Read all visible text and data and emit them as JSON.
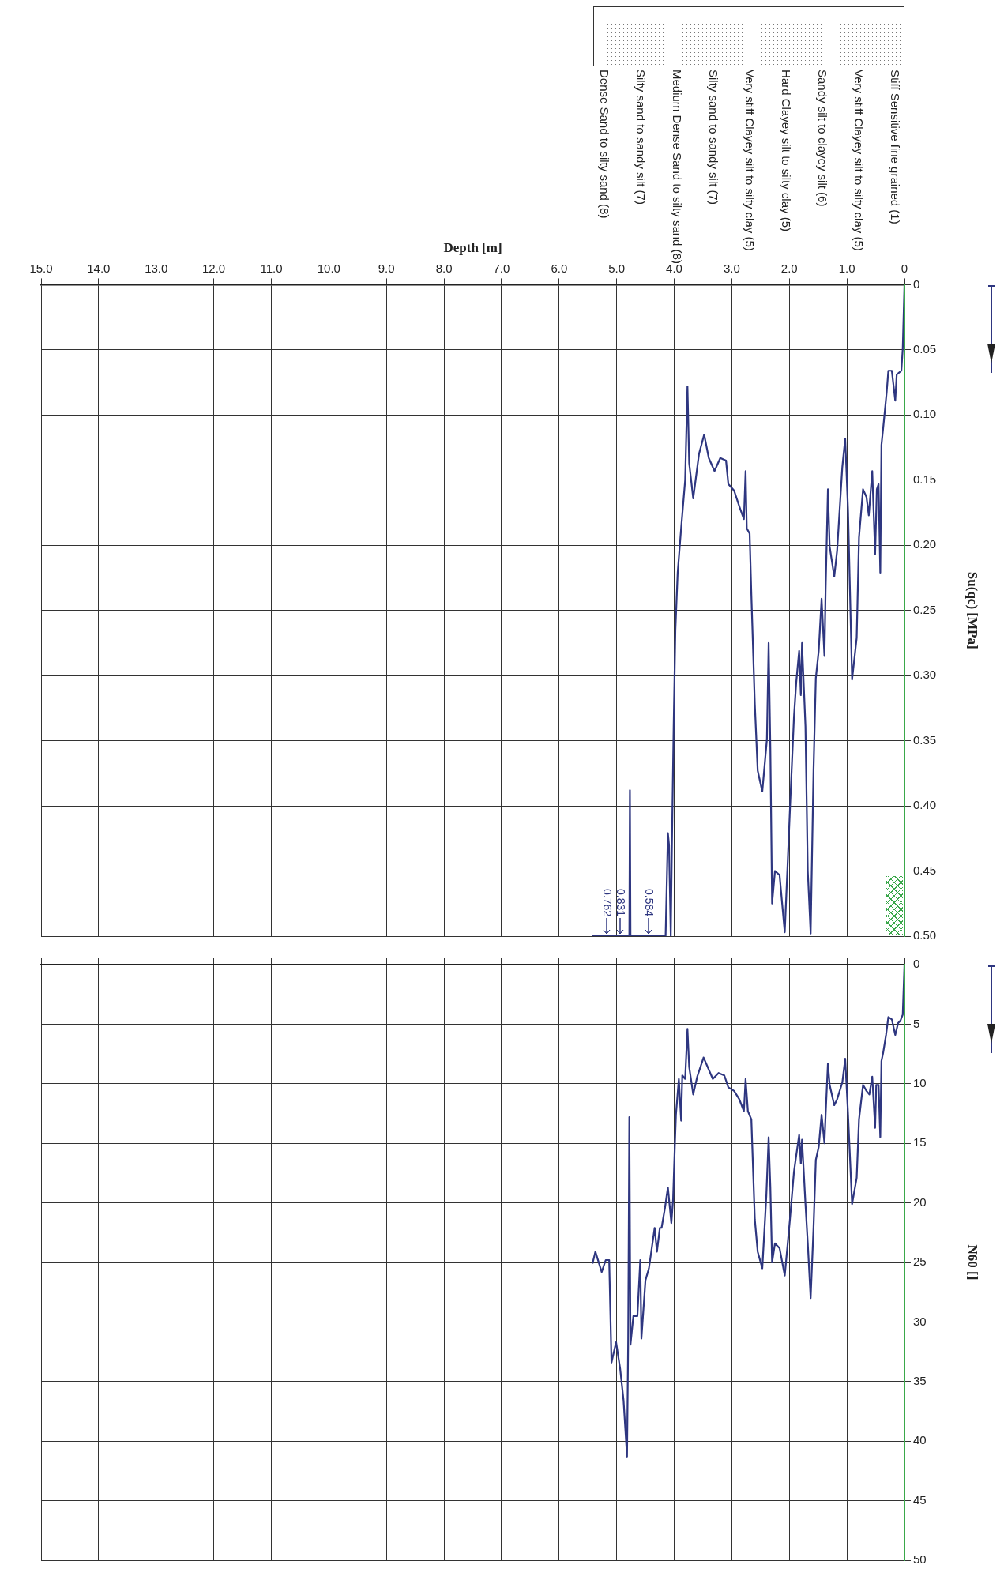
{
  "chart_data": [
    {
      "type": "line",
      "xlabel": "Depth [m]",
      "ylabel": "Su(qc) [MPa]",
      "xlim": [
        15,
        0
      ],
      "ylim": [
        0.5,
        0
      ],
      "xticks": [
        {
          "value": 15,
          "label": "15.0"
        },
        {
          "value": 14,
          "label": "14.0"
        },
        {
          "value": 13,
          "label": "13.0"
        },
        {
          "value": 12,
          "label": "12.0"
        },
        {
          "value": 11,
          "label": "11.0"
        },
        {
          "value": 10,
          "label": "10.0"
        },
        {
          "value": 9,
          "label": "9.0"
        },
        {
          "value": 8,
          "label": "8.0"
        },
        {
          "value": 7,
          "label": "7.0"
        },
        {
          "value": 6,
          "label": "6.0"
        },
        {
          "value": 5,
          "label": "5.0"
        },
        {
          "value": 4,
          "label": "4.0"
        },
        {
          "value": 3,
          "label": "3.0"
        },
        {
          "value": 2,
          "label": "2.0"
        },
        {
          "value": 1,
          "label": "1.0"
        },
        0
      ],
      "yticks": [
        0,
        0.05,
        {
          "value": 0.1,
          "label": "0.10"
        },
        0.15,
        {
          "value": 0.2,
          "label": "0.20"
        },
        0.25,
        {
          "value": 0.3,
          "label": "0.30"
        },
        0.35,
        {
          "value": 0.4,
          "label": "0.40"
        },
        0.45,
        {
          "value": 0.5,
          "label": "0.50"
        }
      ],
      "grid": true,
      "legend": false,
      "marker": "none",
      "series": [
        {
          "color": "#2e3680",
          "x": [
            0,
            0.03,
            0.054,
            0.135,
            0.16,
            0.22,
            0.28,
            0.31,
            0.37,
            0.4,
            0.42,
            0.45,
            0.48,
            0.51,
            0.56,
            0.62,
            0.66,
            0.72,
            0.79,
            0.83,
            0.91,
            0.98,
            1.03,
            1.08,
            1.17,
            1.22,
            1.3,
            1.33,
            1.37,
            1.39,
            1.44,
            1.49,
            1.54,
            1.58,
            1.63,
            1.68,
            1.72,
            1.78,
            1.8,
            1.83,
            1.88,
            1.92,
            1.99,
            2.08,
            2.17,
            2.25,
            2.3,
            2.33,
            2.36,
            2.39,
            2.47,
            2.55,
            2.6,
            2.66,
            2.69,
            2.74,
            2.76,
            2.79,
            2.87,
            2.96,
            3.06,
            3.1,
            3.2,
            3.3,
            3.4,
            3.48,
            3.57,
            3.67,
            3.74,
            3.77,
            3.81,
            3.88,
            3.94,
            3.98,
            4.01,
            4.04,
            4.06,
            4.09,
            4.11,
            4.15,
            4.76,
            4.77,
            4.78,
            5.43
          ],
          "values": [
            0,
            0.049,
            0.066,
            0.069,
            0.089,
            0.066,
            0.066,
            0.083,
            0.11,
            0.123,
            0.221,
            0.153,
            0.157,
            0.207,
            0.143,
            0.177,
            0.163,
            0.157,
            0.194,
            0.271,
            0.303,
            0.174,
            0.118,
            0.14,
            0.204,
            0.224,
            0.201,
            0.157,
            0.234,
            0.285,
            0.241,
            0.281,
            0.302,
            0.373,
            0.498,
            0.45,
            0.339,
            0.275,
            0.315,
            0.281,
            0.305,
            0.332,
            0.403,
            0.497,
            0.453,
            0.45,
            0.475,
            0.356,
            0.275,
            0.349,
            0.389,
            0.373,
            0.322,
            0.238,
            0.191,
            0.187,
            0.143,
            0.18,
            0.17,
            0.158,
            0.153,
            0.135,
            0.133,
            0.143,
            0.133,
            0.115,
            0.13,
            0.164,
            0.137,
            0.078,
            0.15,
            0.187,
            0.221,
            0.265,
            0.339,
            0.43,
            0.5,
            0.43,
            0.421,
            0.5,
            0.5,
            0.388,
            0.5,
            0.5
          ]
        }
      ],
      "annotations": [
        {
          "text": "0.584",
          "x": 4.45,
          "y": 0.5
        },
        {
          "text": "0.831",
          "x": 4.94,
          "y": 0.5
        },
        {
          "text": "0.762",
          "x": 5.18,
          "y": 0.5
        },
        "Stiff Sensitive fine grained (1)",
        "Very stiff Clayey silt to silty clay (5)",
        "Sandy silt to clayey silt (6)",
        "Hard Clayey silt to silty clay (5)",
        "Very stiff Clayey silt to silty clay (5)",
        "Silty sand to sandy silt (7)",
        "Medium Dense Sand to silty sand (8)",
        "Silty sand to sandy silt (7)",
        "Dense Sand to silty sand (8)"
      ]
    },
    {
      "type": "line",
      "ylabel": "N60 []",
      "xlim": [
        15,
        0
      ],
      "ylim": [
        50,
        0
      ],
      "tick_labels": "y",
      "xticks": [
        15,
        14,
        13,
        12,
        11,
        10,
        9,
        8,
        7,
        6,
        5,
        4,
        3,
        2,
        1,
        0
      ],
      "yticks": [
        0,
        5,
        10,
        15,
        20,
        25,
        30,
        35,
        40,
        45,
        50
      ],
      "grid": true,
      "legend": false,
      "marker": "none",
      "series": [
        {
          "color": "#2e3680",
          "x": [
            0,
            0.03,
            0.07,
            0.11,
            0.16,
            0.22,
            0.28,
            0.32,
            0.37,
            0.4,
            0.42,
            0.45,
            0.49,
            0.51,
            0.56,
            0.61,
            0.66,
            0.72,
            0.79,
            0.83,
            0.91,
            0.98,
            1.03,
            1.08,
            1.17,
            1.22,
            1.3,
            1.33,
            1.37,
            1.39,
            1.44,
            1.49,
            1.54,
            1.58,
            1.63,
            1.68,
            1.72,
            1.78,
            1.8,
            1.83,
            1.88,
            1.92,
            1.99,
            2.08,
            2.17,
            2.25,
            2.3,
            2.33,
            2.36,
            2.4,
            2.47,
            2.55,
            2.6,
            2.66,
            2.72,
            2.76,
            2.79,
            2.87,
            2.96,
            3.06,
            3.13,
            3.23,
            3.33,
            3.49,
            3.6,
            3.67,
            3.74,
            3.77,
            3.81,
            3.86,
            3.88,
            3.92,
            3.97,
            3.99,
            4.02,
            4.05,
            4.11,
            4.16,
            4.22,
            4.25,
            4.3,
            4.34,
            4.39,
            4.44,
            4.5,
            4.57,
            4.59,
            4.64,
            4.71,
            4.76,
            4.78,
            4.8,
            4.82,
            4.88,
            4.94,
            5.01,
            5.09,
            5.13,
            5.19,
            5.26,
            5.37,
            5.42
          ],
          "values": [
            0,
            4.2,
            4.7,
            4.9,
            5.9,
            4.6,
            4.4,
            5.9,
            7.4,
            8.1,
            14.5,
            10.1,
            10.1,
            13.7,
            9.4,
            10.9,
            10.6,
            10.1,
            13,
            17.9,
            20.1,
            12.6,
            7.9,
            9.9,
            11.3,
            11.8,
            10.1,
            8.3,
            12.6,
            15,
            12.6,
            15.3,
            16.4,
            22.1,
            28,
            23.4,
            20.1,
            14.7,
            16.7,
            14.3,
            16,
            17.4,
            21.4,
            26.1,
            23.8,
            23.4,
            25,
            18.7,
            14.5,
            19.4,
            25.5,
            24.1,
            21.4,
            13,
            12.3,
            9.6,
            12.3,
            11.3,
            10.6,
            10.3,
            9.3,
            9.1,
            9.6,
            7.8,
            9.4,
            10.9,
            8.6,
            5.4,
            9.6,
            9.3,
            13.1,
            9.6,
            12.6,
            15.3,
            19.7,
            21.7,
            18.7,
            20.4,
            22.1,
            22.1,
            24.1,
            22.1,
            23.8,
            25.5,
            26.5,
            31.4,
            24.8,
            29.5,
            29.5,
            31.9,
            12.8,
            31.5,
            41.3,
            36.6,
            33.9,
            31.7,
            33.4,
            24.8,
            24.8,
            25.8,
            24.1,
            25.1
          ]
        }
      ]
    }
  ]
}
